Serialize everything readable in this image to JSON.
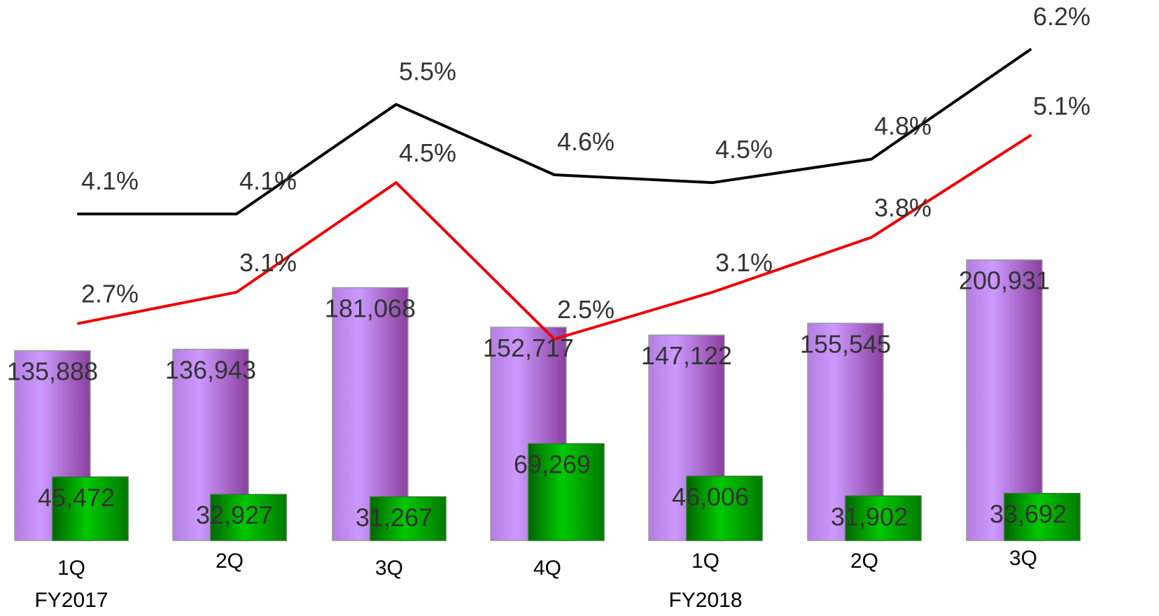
{
  "chart_data": {
    "type": "bar",
    "categories": [
      "1Q",
      "2Q",
      "3Q",
      "4Q",
      "1Q",
      "2Q",
      "3Q"
    ],
    "groups": [
      {
        "label": "FY2017",
        "first_index": 0
      },
      {
        "label": "FY2018",
        "first_index": 4
      }
    ],
    "series": [
      {
        "kind": "bar",
        "color": "#b070d8",
        "values": [
          135888,
          136943,
          181068,
          152717,
          147122,
          155545,
          200931
        ],
        "labels": [
          "135,888",
          "136,943",
          "181,068",
          "152,717",
          "147,122",
          "155,545",
          "200,931"
        ]
      },
      {
        "kind": "bar",
        "color": "#00a800",
        "values": [
          45472,
          32927,
          31267,
          69269,
          46006,
          31902,
          33692
        ],
        "labels": [
          "45,472",
          "32,927",
          "31,267",
          "69,269",
          "46,006",
          "31,902",
          "33,692"
        ]
      },
      {
        "kind": "line",
        "color": "#000000",
        "values": [
          4.1,
          4.1,
          5.5,
          4.6,
          4.5,
          4.8,
          6.2
        ],
        "labels": [
          "4.1%",
          "4.1%",
          "5.5%",
          "4.6%",
          "4.5%",
          "4.8%",
          "6.2%"
        ]
      },
      {
        "kind": "line",
        "color": "#ee0000",
        "values": [
          2.7,
          3.1,
          4.5,
          2.5,
          3.1,
          3.8,
          5.1
        ],
        "labels": [
          "2.7%",
          "3.1%",
          "4.5%",
          "2.5%",
          "3.1%",
          "3.8%",
          "5.1%"
        ]
      }
    ],
    "legend": "none",
    "grid": false
  }
}
